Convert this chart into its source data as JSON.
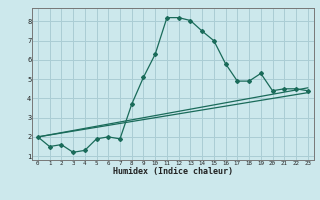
{
  "xlabel": "Humidex (Indice chaleur)",
  "ylabel": "",
  "bg_color": "#cce8ec",
  "grid_color": "#aacdd4",
  "line_color": "#1a6b5a",
  "xlim": [
    -0.5,
    23.5
  ],
  "ylim": [
    0.8,
    8.7
  ],
  "xticks": [
    0,
    1,
    2,
    3,
    4,
    5,
    6,
    7,
    8,
    9,
    10,
    11,
    12,
    13,
    14,
    15,
    16,
    17,
    18,
    19,
    20,
    21,
    22,
    23
  ],
  "yticks": [
    1,
    2,
    3,
    4,
    5,
    6,
    7,
    8
  ],
  "curve1_x": [
    0,
    1,
    2,
    3,
    4,
    5,
    6,
    7,
    8,
    9,
    10,
    11,
    12,
    13,
    14,
    15,
    16,
    17,
    18,
    19,
    20,
    21,
    22,
    23
  ],
  "curve1_y": [
    2.0,
    1.5,
    1.6,
    1.2,
    1.3,
    1.9,
    2.0,
    1.9,
    3.7,
    5.1,
    6.3,
    8.2,
    8.2,
    8.05,
    7.5,
    7.0,
    5.8,
    4.9,
    4.9,
    5.3,
    4.4,
    4.5,
    4.5,
    4.4
  ],
  "curve2_x": [
    0,
    23
  ],
  "curve2_y": [
    2.0,
    4.3
  ],
  "curve3_x": [
    0,
    23
  ],
  "curve3_y": [
    2.0,
    4.55
  ]
}
